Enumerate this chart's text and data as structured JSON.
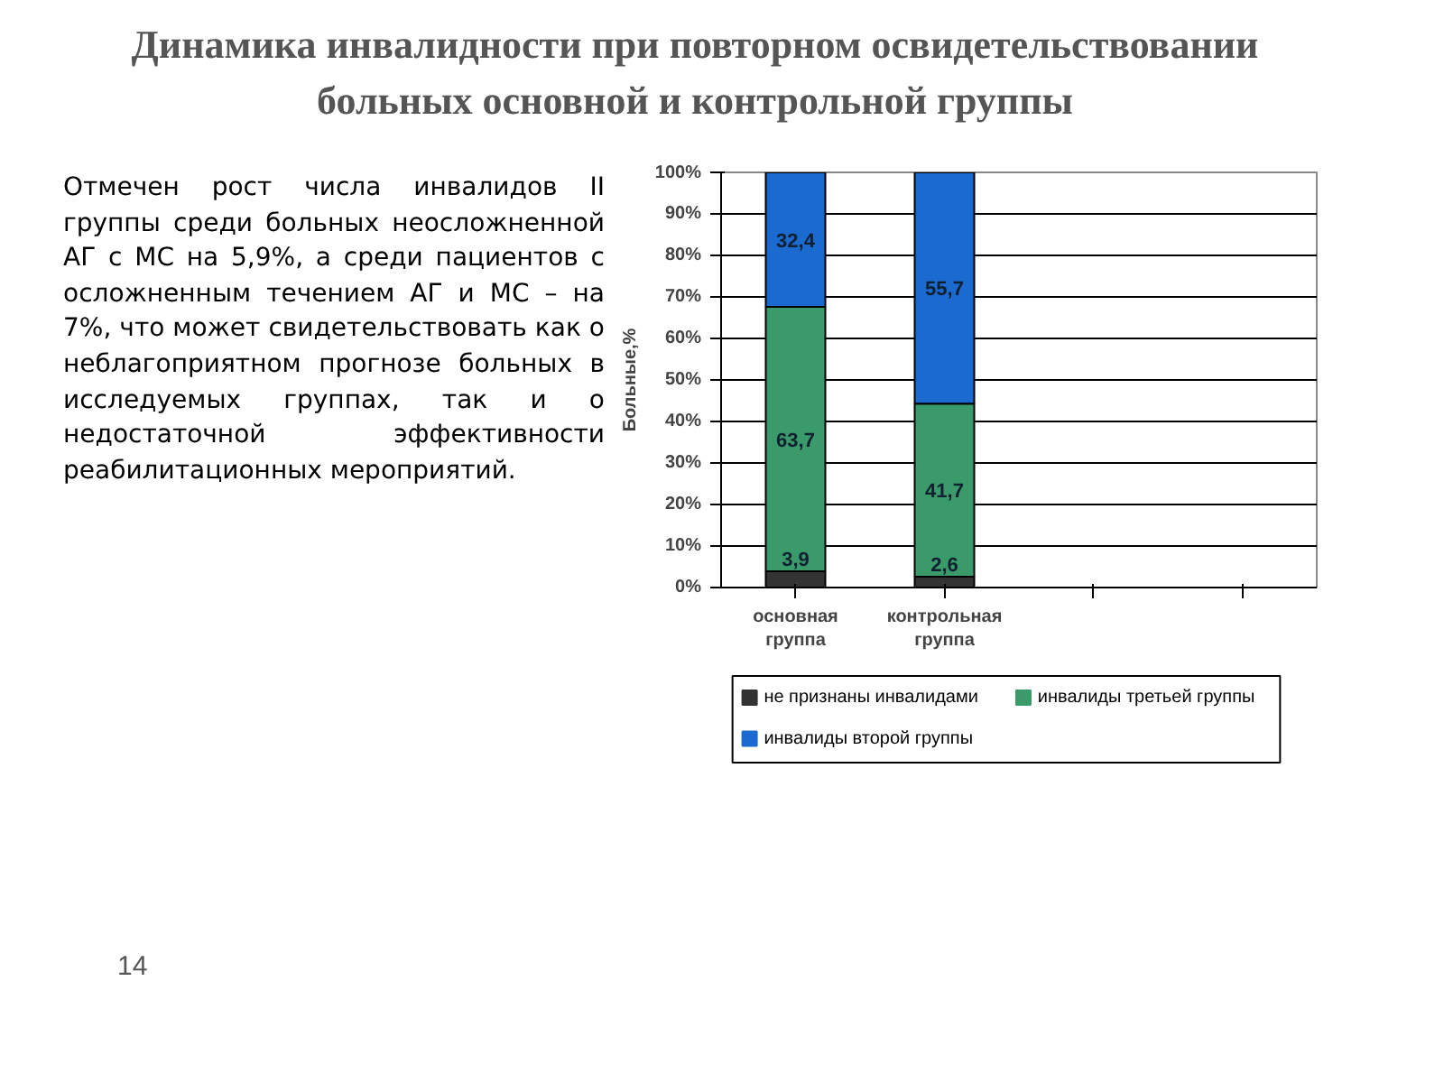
{
  "chart_data": {
    "type": "bar",
    "stacked": true,
    "title": "Динамика инвалидности при повторном освидетельствовании больных основной и контрольной группы",
    "ylabel": "Больные,%",
    "categories": [
      "основная группа",
      "контрольная группа",
      null,
      null
    ],
    "series": [
      {
        "name": "не признаны инвалидами",
        "color": "#333333",
        "values": [
          3.9,
          2.6,
          null,
          null
        ],
        "value_labels": [
          "3,9",
          "2,6",
          null,
          null
        ]
      },
      {
        "name": "инвалиды третьей группы",
        "color": "#3a9a6a",
        "values": [
          63.7,
          41.7,
          null,
          null
        ],
        "value_labels": [
          "63,7",
          "41,7",
          null,
          null
        ]
      },
      {
        "name": "инвалиды второй группы",
        "color": "#1a6ad0",
        "values": [
          32.4,
          55.7,
          null,
          null
        ],
        "value_labels": [
          "32,4",
          "55,7",
          null,
          null
        ]
      }
    ],
    "ylim": [
      0,
      100
    ],
    "yticks": [
      {
        "value": 0,
        "label": "0%"
      },
      {
        "value": 10,
        "label": "10%"
      },
      {
        "value": 20,
        "label": "20%"
      },
      {
        "value": 30,
        "label": "30%"
      },
      {
        "value": 40,
        "label": "40%"
      },
      {
        "value": 50,
        "label": "50%"
      },
      {
        "value": 60,
        "label": "60%"
      },
      {
        "value": 70,
        "label": "70%"
      },
      {
        "value": 80,
        "label": "80%"
      },
      {
        "value": 90,
        "label": "90%"
      },
      {
        "value": 100,
        "label": "100%"
      }
    ],
    "grid": "y",
    "legend": "bottom",
    "annotations": [
      "Отмечен рост числа инвалидов II группы среди больных неосложненной АГ с МС на 5,9%, а среди пациентов с осложненным течением АГ и МС – на 7%, что может свидетельствовать как о неблагоприятном прогнозе больных в исследуемых группах, так и о недостаточной эффективности реабилитационных мероприятий.",
      "14"
    ]
  }
}
